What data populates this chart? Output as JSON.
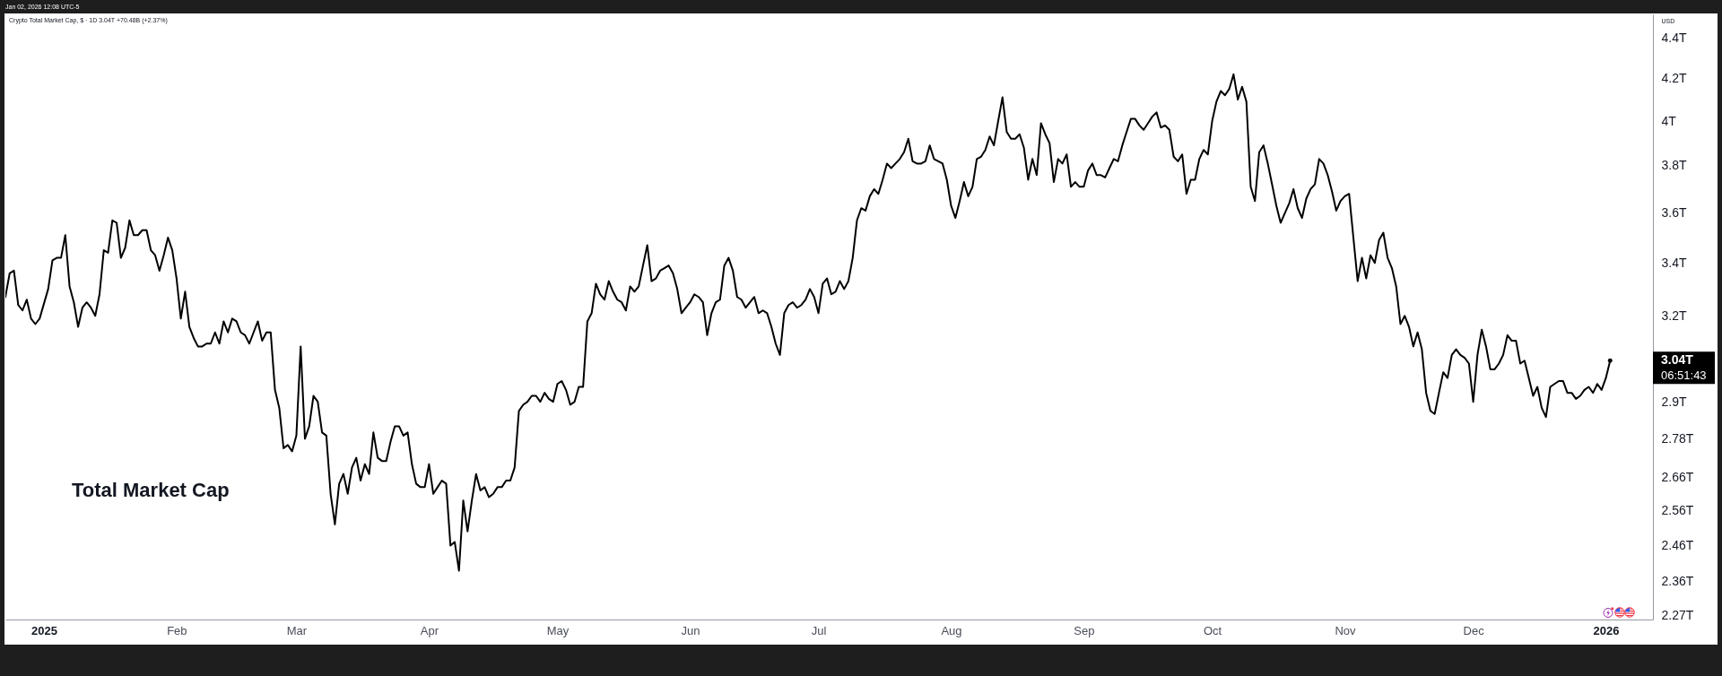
{
  "chart_data": {
    "type": "line",
    "title": "Total Market Cap",
    "subtitle": "Crypto Total Market Cap, $ · 1D 3.04T +70.48B (+2.37%)",
    "ylabel": "USD",
    "annotations": [
      "3.04T",
      "06:51:43",
      "Jan 02, 2026 12:08 UTC-5"
    ],
    "x": [
      "2024-12-23",
      "2024-12-24",
      "2024-12-25",
      "2024-12-26",
      "2024-12-27",
      "2024-12-28",
      "2024-12-29",
      "2024-12-30",
      "2024-12-31",
      "2025-01-02",
      "2025-01-03",
      "2025-01-04",
      "2025-01-05",
      "2025-01-06",
      "2025-01-07",
      "2025-01-08",
      "2025-01-09",
      "2025-01-10",
      "2025-01-11",
      "2025-01-12",
      "2025-01-13",
      "2025-01-14",
      "2025-01-15",
      "2025-01-16",
      "2025-01-17",
      "2025-01-18",
      "2025-01-19",
      "2025-01-20",
      "2025-01-21",
      "2025-01-22",
      "2025-01-23",
      "2025-01-24",
      "2025-01-25",
      "2025-01-26",
      "2025-01-27",
      "2025-01-28",
      "2025-01-29",
      "2025-01-30",
      "2025-01-31",
      "2025-02-01",
      "2025-02-02",
      "2025-02-03",
      "2025-02-04",
      "2025-02-05",
      "2025-02-06",
      "2025-02-07",
      "2025-02-08",
      "2025-02-09",
      "2025-02-10",
      "2025-02-11",
      "2025-02-12",
      "2025-02-13",
      "2025-02-14",
      "2025-02-15",
      "2025-02-16",
      "2025-02-17",
      "2025-02-18",
      "2025-02-19",
      "2025-02-20",
      "2025-02-21",
      "2025-02-22",
      "2025-02-23",
      "2025-02-24",
      "2025-02-25",
      "2025-02-26",
      "2025-02-27",
      "2025-02-28",
      "2025-03-01",
      "2025-03-02",
      "2025-03-03",
      "2025-03-04",
      "2025-03-05",
      "2025-03-06",
      "2025-03-07",
      "2025-03-08",
      "2025-03-09",
      "2025-03-10",
      "2025-03-11",
      "2025-03-12",
      "2025-03-13",
      "2025-03-14",
      "2025-03-15",
      "2025-03-16",
      "2025-03-17",
      "2025-03-18",
      "2025-03-19",
      "2025-03-20",
      "2025-03-21",
      "2025-03-22",
      "2025-03-23",
      "2025-03-24",
      "2025-03-25",
      "2025-03-26",
      "2025-03-27",
      "2025-03-28",
      "2025-03-29",
      "2025-03-30",
      "2025-03-31",
      "2025-04-01",
      "2025-04-02",
      "2025-04-03",
      "2025-04-04",
      "2025-04-05",
      "2025-04-06",
      "2025-04-07",
      "2025-04-08",
      "2025-04-09",
      "2025-04-10",
      "2025-04-11",
      "2025-04-12",
      "2025-04-13",
      "2025-04-14",
      "2025-04-15",
      "2025-04-16",
      "2025-04-17",
      "2025-04-18",
      "2025-04-19",
      "2025-04-20",
      "2025-04-21",
      "2025-04-22",
      "2025-04-23",
      "2025-04-24",
      "2025-04-25",
      "2025-04-26",
      "2025-04-27",
      "2025-04-28",
      "2025-04-29",
      "2025-04-30",
      "2025-05-01",
      "2025-05-02",
      "2025-05-03",
      "2025-05-04",
      "2025-05-05",
      "2025-05-06",
      "2025-05-07",
      "2025-05-08",
      "2025-05-09",
      "2025-05-10",
      "2025-05-11",
      "2025-05-12",
      "2025-05-13",
      "2025-05-14",
      "2025-05-15",
      "2025-05-16",
      "2025-05-17",
      "2025-05-18",
      "2025-05-19",
      "2025-05-20",
      "2025-05-21",
      "2025-05-22",
      "2025-05-23",
      "2025-05-24",
      "2025-05-25",
      "2025-05-26",
      "2025-05-27",
      "2025-05-28",
      "2025-05-29",
      "2025-05-30",
      "2025-05-31",
      "2025-06-01",
      "2025-06-02",
      "2025-06-03",
      "2025-06-04",
      "2025-06-05",
      "2025-06-06",
      "2025-06-07",
      "2025-06-08",
      "2025-06-09",
      "2025-06-10",
      "2025-06-11",
      "2025-06-12",
      "2025-06-13",
      "2025-06-14",
      "2025-06-15",
      "2025-06-16",
      "2025-06-17",
      "2025-06-18",
      "2025-06-19",
      "2025-06-20",
      "2025-06-21",
      "2025-06-22",
      "2025-06-23",
      "2025-06-24",
      "2025-06-25",
      "2025-06-26",
      "2025-06-27",
      "2025-06-28",
      "2025-06-29",
      "2025-06-30",
      "2025-07-01",
      "2025-07-02",
      "2025-07-03",
      "2025-07-04",
      "2025-07-05",
      "2025-07-06",
      "2025-07-07",
      "2025-07-08",
      "2025-07-09",
      "2025-07-10",
      "2025-07-11",
      "2025-07-12",
      "2025-07-13",
      "2025-07-14",
      "2025-07-15",
      "2025-07-16",
      "2025-07-17",
      "2025-07-18",
      "2025-07-19",
      "2025-07-20",
      "2025-07-21",
      "2025-07-22",
      "2025-07-23",
      "2025-07-24",
      "2025-07-25",
      "2025-07-26",
      "2025-07-27",
      "2025-07-28",
      "2025-07-29",
      "2025-07-30",
      "2025-07-31",
      "2025-08-01",
      "2025-08-02",
      "2025-08-03",
      "2025-08-04",
      "2025-08-05",
      "2025-08-06",
      "2025-08-07",
      "2025-08-08",
      "2025-08-09",
      "2025-08-10",
      "2025-08-11",
      "2025-08-12",
      "2025-08-13",
      "2025-08-14",
      "2025-08-15",
      "2025-08-16",
      "2025-08-17",
      "2025-08-18",
      "2025-08-19",
      "2025-08-20",
      "2025-08-21",
      "2025-08-22",
      "2025-08-23",
      "2025-08-24",
      "2025-08-25",
      "2025-08-26",
      "2025-08-27",
      "2025-08-28",
      "2025-08-29",
      "2025-08-30",
      "2025-08-31",
      "2025-09-01",
      "2025-09-02",
      "2025-09-03",
      "2025-09-04",
      "2025-09-05",
      "2025-09-06",
      "2025-09-07",
      "2025-09-08",
      "2025-09-09",
      "2025-09-10",
      "2025-09-11",
      "2025-09-12",
      "2025-09-13",
      "2025-09-14",
      "2025-09-15",
      "2025-09-16",
      "2025-09-17",
      "2025-09-18",
      "2025-09-19",
      "2025-09-20",
      "2025-09-21",
      "2025-09-22",
      "2025-09-23",
      "2025-09-24",
      "2025-09-25",
      "2025-09-26",
      "2025-09-27",
      "2025-09-28",
      "2025-09-29",
      "2025-09-30",
      "2025-10-01",
      "2025-10-02",
      "2025-10-03",
      "2025-10-04",
      "2025-10-05",
      "2025-10-06",
      "2025-10-07",
      "2025-10-08",
      "2025-10-09",
      "2025-10-10",
      "2025-10-11",
      "2025-10-12",
      "2025-10-13",
      "2025-10-14",
      "2025-10-15",
      "2025-10-16",
      "2025-10-17",
      "2025-10-18",
      "2025-10-19",
      "2025-10-20",
      "2025-10-21",
      "2025-10-22",
      "2025-10-23",
      "2025-10-24",
      "2025-10-25",
      "2025-10-26",
      "2025-10-27",
      "2025-10-28",
      "2025-10-29",
      "2025-10-30",
      "2025-10-31",
      "2025-11-01",
      "2025-11-02",
      "2025-11-03",
      "2025-11-04",
      "2025-11-05",
      "2025-11-06",
      "2025-11-07",
      "2025-11-08",
      "2025-11-09",
      "2025-11-10",
      "2025-11-11",
      "2025-11-12",
      "2025-11-13",
      "2025-11-14",
      "2025-11-15",
      "2025-11-16",
      "2025-11-17",
      "2025-11-18",
      "2025-11-19",
      "2025-11-20",
      "2025-11-21",
      "2025-11-22",
      "2025-11-23",
      "2025-11-24",
      "2025-11-25",
      "2025-11-26",
      "2025-11-27",
      "2025-11-28",
      "2025-11-29",
      "2025-11-30",
      "2025-12-01",
      "2025-12-02",
      "2025-12-03",
      "2025-12-04",
      "2025-12-05",
      "2025-12-06",
      "2025-12-07",
      "2025-12-08",
      "2025-12-09",
      "2025-12-10",
      "2025-12-11",
      "2025-12-12",
      "2025-12-13",
      "2025-12-14",
      "2025-12-15",
      "2025-12-16",
      "2025-12-17",
      "2025-12-18",
      "2025-12-19",
      "2025-12-20",
      "2025-12-21",
      "2025-12-22",
      "2025-12-23",
      "2025-12-24",
      "2025-12-25",
      "2025-12-26",
      "2025-12-27",
      "2025-12-28",
      "2025-12-29",
      "2025-12-30",
      "2025-12-31",
      "2026-01-01",
      "2026-01-02"
    ],
    "series": [
      {
        "color": "#000000",
        "values": [
          3.27,
          3.36,
          3.37,
          3.24,
          3.22,
          3.26,
          3.19,
          3.17,
          3.19,
          3.3,
          3.41,
          3.42,
          3.42,
          3.51,
          3.31,
          3.25,
          3.16,
          3.23,
          3.25,
          3.23,
          3.2,
          3.28,
          3.45,
          3.44,
          3.57,
          3.56,
          3.42,
          3.46,
          3.57,
          3.51,
          3.51,
          3.53,
          3.53,
          3.45,
          3.43,
          3.37,
          3.43,
          3.5,
          3.45,
          3.34,
          3.19,
          3.29,
          3.16,
          3.12,
          3.09,
          3.09,
          3.1,
          3.1,
          3.14,
          3.1,
          3.18,
          3.14,
          3.19,
          3.18,
          3.14,
          3.13,
          3.1,
          3.14,
          3.18,
          3.11,
          3.14,
          3.14,
          2.94,
          2.88,
          2.75,
          2.76,
          2.74,
          2.79,
          3.09,
          2.78,
          2.82,
          2.92,
          2.9,
          2.8,
          2.79,
          2.61,
          2.52,
          2.64,
          2.67,
          2.61,
          2.69,
          2.72,
          2.65,
          2.7,
          2.67,
          2.8,
          2.72,
          2.71,
          2.71,
          2.77,
          2.82,
          2.82,
          2.79,
          2.8,
          2.7,
          2.64,
          2.63,
          2.63,
          2.7,
          2.61,
          2.63,
          2.65,
          2.64,
          2.46,
          2.47,
          2.39,
          2.59,
          2.5,
          2.59,
          2.67,
          2.62,
          2.63,
          2.6,
          2.61,
          2.63,
          2.63,
          2.65,
          2.65,
          2.69,
          2.87,
          2.89,
          2.9,
          2.92,
          2.92,
          2.9,
          2.93,
          2.91,
          2.9,
          2.96,
          2.97,
          2.94,
          2.89,
          2.9,
          2.95,
          2.95,
          3.18,
          3.21,
          3.32,
          3.28,
          3.26,
          3.33,
          3.29,
          3.26,
          3.25,
          3.22,
          3.31,
          3.29,
          3.31,
          3.39,
          3.47,
          3.33,
          3.34,
          3.37,
          3.38,
          3.39,
          3.36,
          3.3,
          3.21,
          3.23,
          3.25,
          3.28,
          3.27,
          3.25,
          3.13,
          3.21,
          3.25,
          3.26,
          3.39,
          3.42,
          3.37,
          3.27,
          3.26,
          3.23,
          3.25,
          3.27,
          3.21,
          3.22,
          3.21,
          3.16,
          3.1,
          3.06,
          3.21,
          3.24,
          3.25,
          3.23,
          3.24,
          3.26,
          3.3,
          3.27,
          3.21,
          3.32,
          3.34,
          3.28,
          3.29,
          3.33,
          3.3,
          3.33,
          3.42,
          3.57,
          3.62,
          3.61,
          3.67,
          3.7,
          3.68,
          3.74,
          3.81,
          3.79,
          3.81,
          3.83,
          3.86,
          3.92,
          3.82,
          3.81,
          3.81,
          3.82,
          3.89,
          3.83,
          3.82,
          3.81,
          3.74,
          3.63,
          3.58,
          3.65,
          3.73,
          3.67,
          3.71,
          3.83,
          3.84,
          3.87,
          3.93,
          3.89,
          4.0,
          4.11,
          3.95,
          3.92,
          3.92,
          3.94,
          3.88,
          3.74,
          3.83,
          3.76,
          3.99,
          3.94,
          3.9,
          3.73,
          3.83,
          3.81,
          3.85,
          3.71,
          3.73,
          3.71,
          3.71,
          3.78,
          3.81,
          3.76,
          3.76,
          3.75,
          3.79,
          3.83,
          3.82,
          3.89,
          3.95,
          4.01,
          4.01,
          3.98,
          3.96,
          3.99,
          4.02,
          4.04,
          3.97,
          3.98,
          3.96,
          3.84,
          3.82,
          3.85,
          3.68,
          3.74,
          3.74,
          3.83,
          3.87,
          3.85,
          4.0,
          4.09,
          4.14,
          4.12,
          4.15,
          4.22,
          4.1,
          4.16,
          4.09,
          3.71,
          3.65,
          3.86,
          3.89,
          3.81,
          3.72,
          3.63,
          3.56,
          3.6,
          3.64,
          3.7,
          3.62,
          3.58,
          3.66,
          3.7,
          3.72,
          3.83,
          3.81,
          3.76,
          3.69,
          3.61,
          3.65,
          3.67,
          3.68,
          3.5,
          3.33,
          3.42,
          3.34,
          3.43,
          3.4,
          3.49,
          3.52,
          3.42,
          3.38,
          3.31,
          3.17,
          3.2,
          3.16,
          3.09,
          3.14,
          3.08,
          2.93,
          2.87,
          2.86,
          2.93,
          3.0,
          2.98,
          3.06,
          3.08,
          3.06,
          3.05,
          3.03,
          2.9,
          3.06,
          3.15,
          3.09,
          3.01,
          3.01,
          3.03,
          3.06,
          3.13,
          3.11,
          3.11,
          3.03,
          3.04,
          2.98,
          2.92,
          2.95,
          2.88,
          2.85,
          2.95,
          2.96,
          2.97,
          2.97,
          2.93,
          2.93,
          2.91,
          2.92,
          2.94,
          2.95,
          2.93,
          2.96,
          2.94,
          2.98,
          3.04
        ]
      }
    ],
    "xlim": [
      "2024-12-23",
      "2026-01-12"
    ],
    "ylim": [
      2.26,
      4.52
    ],
    "log": true,
    "xticks": [
      {
        "value": "2025-01-01",
        "label": "2025"
      },
      {
        "value": "2025-02-01",
        "label": "Feb"
      },
      {
        "value": "2025-03-01",
        "label": "Mar"
      },
      {
        "value": "2025-04-01",
        "label": "Apr"
      },
      {
        "value": "2025-05-01",
        "label": "May"
      },
      {
        "value": "2025-06-01",
        "label": "Jun"
      },
      {
        "value": "2025-07-01",
        "label": "Jul"
      },
      {
        "value": "2025-08-01",
        "label": "Aug"
      },
      {
        "value": "2025-09-01",
        "label": "Sep"
      },
      {
        "value": "2025-10-01",
        "label": "Oct"
      },
      {
        "value": "2025-11-01",
        "label": "Nov"
      },
      {
        "value": "2025-12-01",
        "label": "Dec"
      },
      {
        "value": "2026-01-01",
        "label": "2026"
      }
    ],
    "yticks": [
      {
        "value": 2.27,
        "label": "2.27T"
      },
      {
        "value": 2.36,
        "label": "2.36T"
      },
      {
        "value": 2.46,
        "label": "2.46T"
      },
      {
        "value": 2.56,
        "label": "2.56T"
      },
      {
        "value": 2.66,
        "label": "2.66T"
      },
      {
        "value": 2.78,
        "label": "2.78T"
      },
      {
        "value": 2.9,
        "label": "2.9T"
      },
      {
        "value": 3.2,
        "label": "3.2T"
      },
      {
        "value": 3.4,
        "label": "3.4T"
      },
      {
        "value": 3.6,
        "label": "3.6T"
      },
      {
        "value": 3.8,
        "label": "3.8T"
      },
      {
        "value": 4,
        "label": "4T"
      },
      {
        "value": 4.2,
        "label": "4.2T"
      },
      {
        "value": 4.4,
        "label": "4.4T"
      }
    ]
  }
}
